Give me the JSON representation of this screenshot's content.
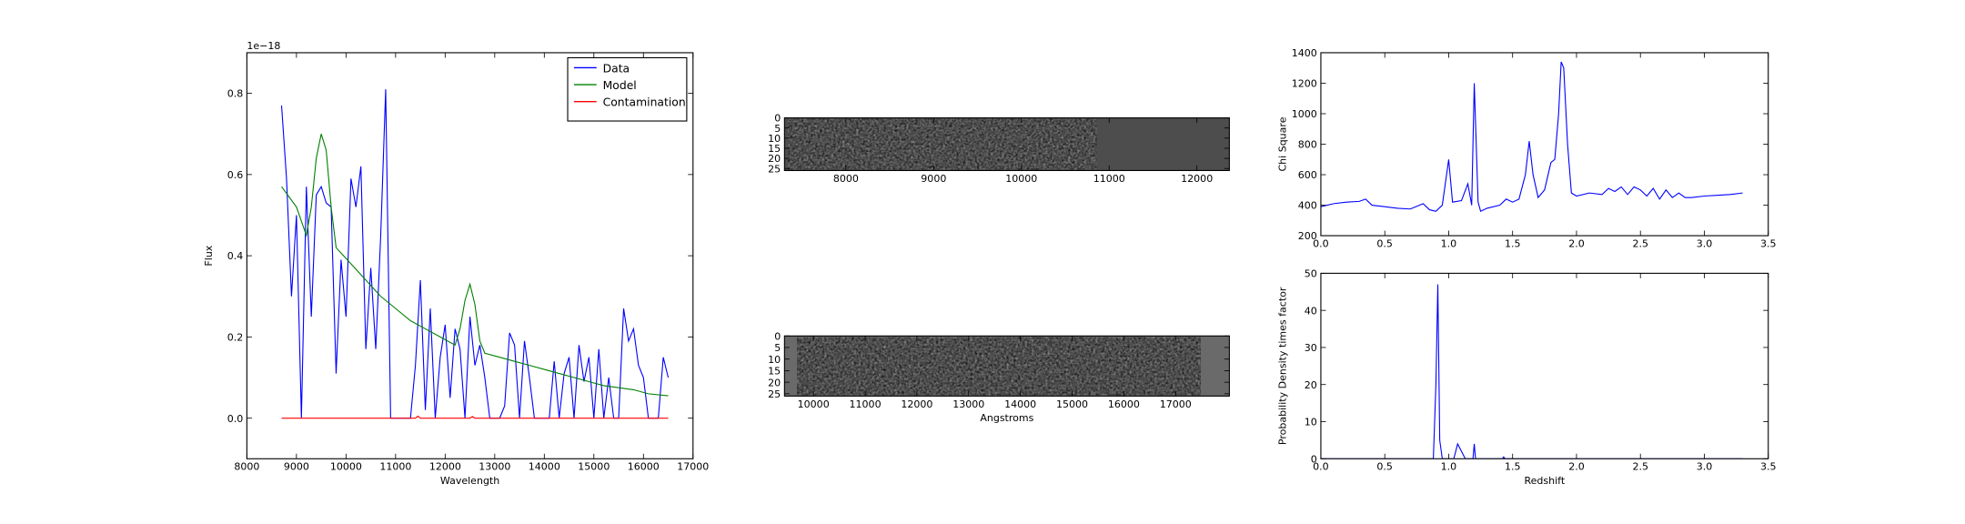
{
  "chart_data": [
    {
      "type": "line",
      "xlabel": "Wavelength",
      "ylabel": "Flux",
      "offset_text": "1e−18",
      "xlim": [
        8000,
        17000
      ],
      "xticks": [
        8000,
        9000,
        10000,
        11000,
        12000,
        13000,
        14000,
        15000,
        16000,
        17000
      ],
      "ylim": [
        -0.1,
        0.9
      ],
      "yticks": [
        {
          "value": 0,
          "label": "0.0"
        },
        0.2,
        0.4,
        0.6,
        0.8
      ],
      "legend": "upper right",
      "series": [
        {
          "name": "Data",
          "color": "#0000ff",
          "x": [
            8700,
            8800,
            8900,
            9000,
            9100,
            9200,
            9300,
            9400,
            9500,
            9600,
            9700,
            9800,
            9900,
            10000,
            10100,
            10200,
            10300,
            10400,
            10500,
            10600,
            10700,
            10800,
            10900,
            11000,
            11100,
            11200,
            11300,
            11400,
            11500,
            11600,
            11700,
            11800,
            11900,
            12000,
            12100,
            12200,
            12300,
            12400,
            12500,
            12600,
            12700,
            12800,
            12900,
            13000,
            13100,
            13200,
            13300,
            13400,
            13500,
            13600,
            13700,
            13800,
            13900,
            14000,
            14100,
            14200,
            14300,
            14400,
            14500,
            14600,
            14700,
            14800,
            14900,
            15000,
            15100,
            15200,
            15300,
            15400,
            15500,
            15600,
            15700,
            15800,
            15900,
            16000,
            16100,
            16200,
            16300,
            16400,
            16500
          ],
          "values": [
            0.77,
            0.59,
            0.3,
            0.5,
            0.0,
            0.57,
            0.25,
            0.55,
            0.57,
            0.53,
            0.52,
            0.11,
            0.39,
            0.25,
            0.59,
            0.52,
            0.62,
            0.17,
            0.37,
            0.17,
            0.45,
            0.81,
            0.0,
            0.0,
            0.0,
            0.0,
            0.0,
            0.13,
            0.34,
            0.02,
            0.27,
            0.0,
            0.15,
            0.23,
            0.05,
            0.22,
            0.17,
            0.0,
            0.25,
            0.13,
            0.18,
            0.1,
            0.0,
            0.0,
            0.0,
            0.03,
            0.21,
            0.18,
            0.0,
            0.19,
            0.1,
            0.0,
            0.0,
            0.0,
            0.0,
            0.14,
            0.0,
            0.11,
            0.15,
            0.0,
            0.18,
            0.09,
            0.15,
            0.0,
            0.17,
            0.0,
            0.1,
            0.0,
            0.0,
            0.27,
            0.19,
            0.22,
            0.13,
            0.1,
            0.0,
            0.0,
            0.0,
            0.15,
            0.1
          ]
        },
        {
          "name": "Model",
          "color": "#008000",
          "x": [
            8700,
            9000,
            9200,
            9300,
            9400,
            9500,
            9600,
            9700,
            9800,
            10100,
            10400,
            10700,
            11000,
            11300,
            11600,
            11900,
            12200,
            12300,
            12400,
            12500,
            12600,
            12700,
            12800,
            13100,
            13400,
            13700,
            14000,
            14300,
            14600,
            14900,
            15200,
            15500,
            15800,
            16100,
            16500
          ],
          "values": [
            0.57,
            0.52,
            0.45,
            0.52,
            0.64,
            0.7,
            0.66,
            0.52,
            0.42,
            0.38,
            0.34,
            0.3,
            0.27,
            0.24,
            0.22,
            0.2,
            0.18,
            0.22,
            0.29,
            0.33,
            0.28,
            0.19,
            0.16,
            0.15,
            0.14,
            0.13,
            0.12,
            0.11,
            0.1,
            0.09,
            0.08,
            0.075,
            0.07,
            0.06,
            0.055
          ]
        },
        {
          "name": "Contamination",
          "color": "#ff0000",
          "x": [
            8700,
            11400,
            11450,
            11500,
            12500,
            12550,
            12600,
            16500
          ],
          "values": [
            0,
            0,
            0.005,
            0,
            0,
            0.004,
            0,
            0
          ]
        }
      ]
    },
    {
      "type": "image",
      "xlim": [
        7300,
        12370
      ],
      "xticks": [
        8000,
        9000,
        10000,
        11000,
        12000
      ],
      "ylim": [
        26,
        0
      ],
      "yticks": [
        0,
        5,
        10,
        15,
        20,
        25
      ]
    },
    {
      "type": "image",
      "xlabel": "Angstroms",
      "xlim": [
        9440,
        18040
      ],
      "xticks": [
        10000,
        11000,
        12000,
        13000,
        14000,
        15000,
        16000,
        17000
      ],
      "ylim": [
        26,
        0
      ],
      "yticks": [
        0,
        5,
        10,
        15,
        20,
        25
      ]
    },
    {
      "type": "line",
      "ylabel": "Chi Square",
      "xlim": [
        0,
        3.5
      ],
      "xticks": [
        {
          "value": 0,
          "label": "0.0"
        },
        0.5,
        {
          "value": 1,
          "label": "1.0"
        },
        1.5,
        {
          "value": 2,
          "label": "2.0"
        },
        2.5,
        {
          "value": 3,
          "label": "3.0"
        },
        3.5
      ],
      "ylim": [
        200,
        1400
      ],
      "yticks": [
        200,
        400,
        600,
        800,
        1000,
        1200,
        1400
      ],
      "series": [
        {
          "color": "#0000ff",
          "x": [
            0,
            0.1,
            0.2,
            0.3,
            0.35,
            0.4,
            0.5,
            0.6,
            0.7,
            0.8,
            0.85,
            0.9,
            0.95,
            1.0,
            1.03,
            1.1,
            1.15,
            1.18,
            1.2,
            1.23,
            1.25,
            1.3,
            1.4,
            1.45,
            1.5,
            1.55,
            1.6,
            1.63,
            1.66,
            1.7,
            1.75,
            1.8,
            1.83,
            1.86,
            1.88,
            1.9,
            1.93,
            1.96,
            2.0,
            2.1,
            2.2,
            2.25,
            2.3,
            2.35,
            2.4,
            2.45,
            2.5,
            2.55,
            2.6,
            2.65,
            2.7,
            2.75,
            2.8,
            2.85,
            2.9,
            3.0,
            3.1,
            3.2,
            3.3
          ],
          "values": [
            390,
            410,
            420,
            425,
            440,
            400,
            390,
            380,
            375,
            410,
            370,
            360,
            400,
            700,
            420,
            430,
            540,
            400,
            1200,
            420,
            360,
            380,
            400,
            440,
            420,
            440,
            600,
            820,
            600,
            450,
            500,
            680,
            700,
            1000,
            1340,
            1300,
            800,
            480,
            460,
            480,
            470,
            510,
            490,
            520,
            470,
            520,
            500,
            460,
            510,
            440,
            500,
            450,
            480,
            450,
            450,
            460,
            465,
            470,
            480
          ]
        }
      ]
    },
    {
      "type": "line",
      "xlabel": "Redshift",
      "ylabel": "Probability Density times factor",
      "xlim": [
        0,
        3.5
      ],
      "xticks": [
        {
          "value": 0,
          "label": "0.0"
        },
        0.5,
        {
          "value": 1,
          "label": "1.0"
        },
        1.5,
        {
          "value": 2,
          "label": "2.0"
        },
        2.5,
        {
          "value": 3,
          "label": "3.0"
        },
        3.5
      ],
      "ylim": [
        0,
        50
      ],
      "yticks": [
        0,
        10,
        20,
        30,
        40,
        50
      ],
      "series": [
        {
          "color": "#0000ff",
          "x": [
            0,
            0.88,
            0.9,
            0.915,
            0.93,
            0.95,
            1.04,
            1.07,
            1.1,
            1.13,
            1.19,
            1.2,
            1.21,
            1.42,
            1.43,
            1.44,
            3.3
          ],
          "values": [
            0,
            0,
            20,
            47,
            5,
            0,
            0,
            4,
            2,
            0,
            0,
            4,
            0,
            0,
            0.5,
            0,
            0
          ]
        }
      ]
    }
  ]
}
